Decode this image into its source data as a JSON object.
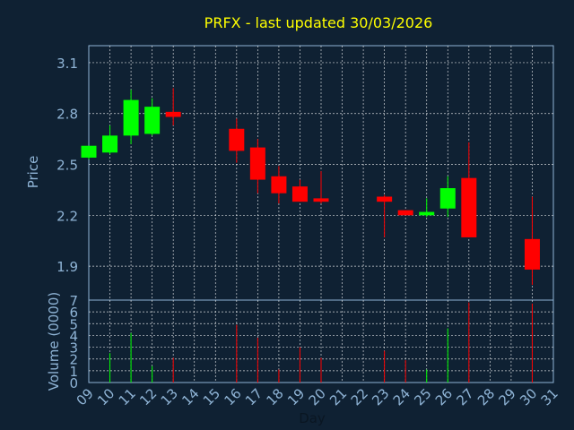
{
  "chart_data": {
    "type": "candlestick",
    "title": "PRFX - last updated 30/03/2026",
    "xlabel": "Day",
    "price_panel": {
      "ylabel": "Price",
      "ylim": [
        1.7,
        3.2
      ],
      "yticks": [
        "1.9",
        "2.2",
        "2.5",
        "2.8",
        "3.1"
      ]
    },
    "volume_panel": {
      "ylabel": "Volume (0000)",
      "ylim": [
        0,
        7
      ],
      "yticks": [
        "0",
        "1",
        "2",
        "3",
        "4",
        "5",
        "6",
        "7"
      ]
    },
    "x_ticks": [
      "09",
      "10",
      "11",
      "12",
      "13",
      "14",
      "15",
      "16",
      "17",
      "18",
      "19",
      "20",
      "21",
      "22",
      "23",
      "24",
      "25",
      "26",
      "27",
      "28",
      "29",
      "30",
      "31"
    ],
    "grid": true,
    "colors": {
      "up": "#00ff00",
      "down": "#ff0000",
      "title": "#ffff00",
      "text": "#8fb4d6",
      "grid": "#ffffff",
      "background": "#0f2133"
    },
    "candles": [
      {
        "day": 9,
        "open": 2.54,
        "high": 2.61,
        "low": 2.53,
        "close": 2.61,
        "volume": 0.0
      },
      {
        "day": 10,
        "open": 2.57,
        "high": 2.73,
        "low": 2.56,
        "close": 2.67,
        "volume": 2.5
      },
      {
        "day": 11,
        "open": 2.67,
        "high": 2.94,
        "low": 2.62,
        "close": 2.88,
        "volume": 4.2
      },
      {
        "day": 12,
        "open": 2.68,
        "high": 2.89,
        "low": 2.67,
        "close": 2.84,
        "volume": 1.4
      },
      {
        "day": 13,
        "open": 2.81,
        "high": 2.95,
        "low": 2.73,
        "close": 2.78,
        "volume": 2.1
      },
      {
        "day": 16,
        "open": 2.71,
        "high": 2.77,
        "low": 2.51,
        "close": 2.58,
        "volume": 4.9
      },
      {
        "day": 17,
        "open": 2.6,
        "high": 2.65,
        "low": 2.33,
        "close": 2.41,
        "volume": 3.8
      },
      {
        "day": 18,
        "open": 2.43,
        "high": 2.49,
        "low": 2.27,
        "close": 2.33,
        "volume": 1.1
      },
      {
        "day": 19,
        "open": 2.37,
        "high": 2.41,
        "low": 2.28,
        "close": 2.28,
        "volume": 3.0
      },
      {
        "day": 20,
        "open": 2.3,
        "high": 2.46,
        "low": 2.27,
        "close": 2.28,
        "volume": 2.1
      },
      {
        "day": 23,
        "open": 2.31,
        "high": 2.32,
        "low": 2.07,
        "close": 2.28,
        "volume": 2.7
      },
      {
        "day": 24,
        "open": 2.23,
        "high": 2.23,
        "low": 2.2,
        "close": 2.2,
        "volume": 1.9
      },
      {
        "day": 25,
        "open": 2.2,
        "high": 2.3,
        "low": 2.19,
        "close": 2.22,
        "volume": 1.1
      },
      {
        "day": 26,
        "open": 2.24,
        "high": 2.43,
        "low": 2.19,
        "close": 2.36,
        "volume": 4.6
      },
      {
        "day": 27,
        "open": 2.42,
        "high": 2.63,
        "low": 2.07,
        "close": 2.07,
        "volume": 6.8
      },
      {
        "day": 30,
        "open": 2.06,
        "high": 2.31,
        "low": 1.79,
        "close": 1.88,
        "volume": 6.7
      }
    ]
  }
}
